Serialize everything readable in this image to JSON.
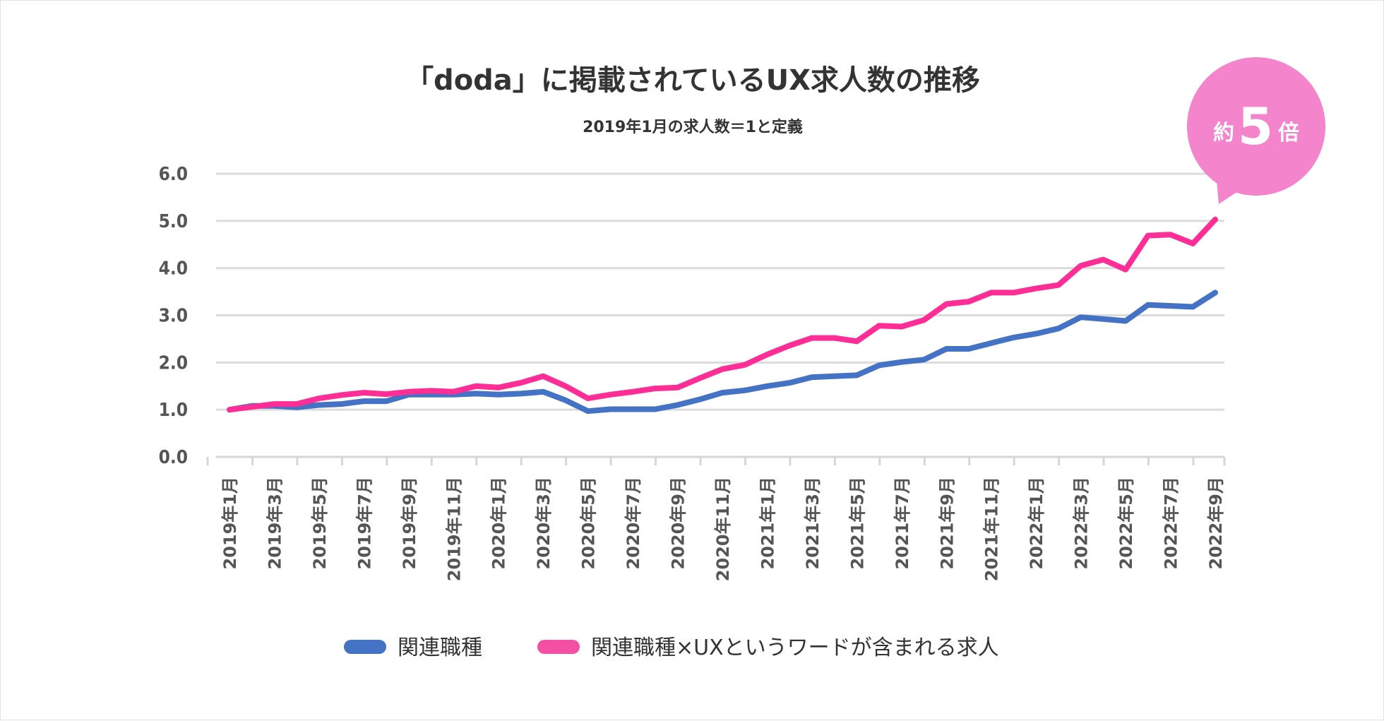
{
  "chart_data": {
    "type": "line",
    "title": "「doda」に掲載されているUX求人数の推移",
    "subtitle": "2019年1月の求人数＝1と定義",
    "xlabel": "",
    "ylabel": "",
    "ylim": [
      0,
      6
    ],
    "yticks": [
      "0.0",
      "1.0",
      "2.0",
      "3.0",
      "4.0",
      "5.0",
      "6.0"
    ],
    "grid": true,
    "legend_position": "bottom",
    "x": [
      "2019年1月",
      "2019年2月",
      "2019年3月",
      "2019年4月",
      "2019年5月",
      "2019年6月",
      "2019年7月",
      "2019年8月",
      "2019年9月",
      "2019年10月",
      "2019年11月",
      "2019年12月",
      "2020年1月",
      "2020年2月",
      "2020年3月",
      "2020年4月",
      "2020年5月",
      "2020年6月",
      "2020年7月",
      "2020年8月",
      "2020年9月",
      "2020年10月",
      "2020年11月",
      "2020年12月",
      "2021年1月",
      "2021年2月",
      "2021年3月",
      "2021年4月",
      "2021年5月",
      "2021年6月",
      "2021年7月",
      "2021年8月",
      "2021年9月",
      "2021年10月",
      "2021年11月",
      "2021年12月",
      "2022年1月",
      "2022年2月",
      "2022年3月",
      "2022年4月",
      "2022年5月",
      "2022年6月",
      "2022年7月",
      "2022年8月",
      "2022年9月"
    ],
    "xtick_labels": [
      "2019年1月",
      "2019年3月",
      "2019年5月",
      "2019年7月",
      "2019年9月",
      "2019年11月",
      "2020年1月",
      "2020年3月",
      "2020年5月",
      "2020年7月",
      "2020年9月",
      "2020年11月",
      "2021年1月",
      "2021年3月",
      "2021年5月",
      "2021年7月",
      "2021年9月",
      "2021年11月",
      "2022年1月",
      "2022年3月",
      "2022年5月",
      "2022年7月",
      "2022年9月"
    ],
    "series": [
      {
        "name": "関連職種",
        "color": "#4472c4",
        "values": [
          1.0,
          1.08,
          1.08,
          1.05,
          1.1,
          1.12,
          1.18,
          1.18,
          1.32,
          1.32,
          1.32,
          1.34,
          1.32,
          1.34,
          1.38,
          1.2,
          0.97,
          1.01,
          1.01,
          1.01,
          1.1,
          1.22,
          1.36,
          1.41,
          1.5,
          1.57,
          1.69,
          1.71,
          1.73,
          1.94,
          2.01,
          2.06,
          2.29,
          2.29,
          2.41,
          2.53,
          2.61,
          2.72,
          2.96,
          2.92,
          2.88,
          3.22,
          3.2,
          3.18,
          3.48
        ]
      },
      {
        "name": "関連職種×UXというワードが含まれる求人",
        "color": "#ff2d96",
        "values": [
          1.0,
          1.06,
          1.12,
          1.12,
          1.24,
          1.31,
          1.36,
          1.33,
          1.38,
          1.4,
          1.38,
          1.5,
          1.47,
          1.57,
          1.71,
          1.5,
          1.24,
          1.32,
          1.38,
          1.45,
          1.47,
          1.67,
          1.86,
          1.95,
          2.17,
          2.36,
          2.52,
          2.52,
          2.45,
          2.78,
          2.76,
          2.9,
          3.24,
          3.29,
          3.48,
          3.48,
          3.57,
          3.64,
          4.05,
          4.18,
          3.97,
          4.69,
          4.71,
          4.52,
          5.03
        ]
      }
    ],
    "annotation": {
      "prefix": "約",
      "number": "5",
      "suffix": "倍",
      "color": "#f484cc"
    }
  }
}
